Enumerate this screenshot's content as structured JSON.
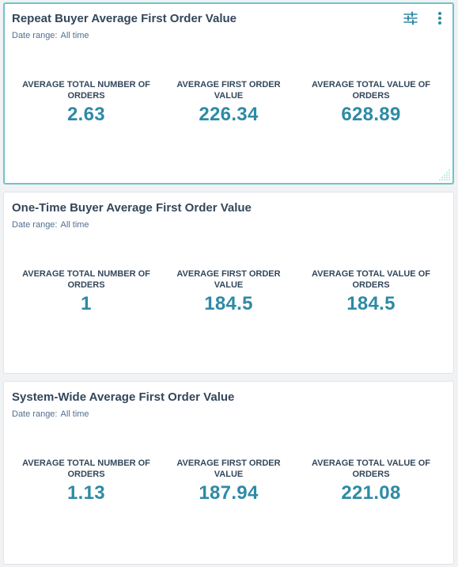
{
  "colors": {
    "accent": "#2e8aa5",
    "title_text": "#33475b",
    "muted_text": "#516f90",
    "selected_border": "#6fc3c9"
  },
  "icons": {
    "filter": "sliders-icon",
    "more": "vertical-ellipsis-icon",
    "resize": "resize-handle-icon"
  },
  "cards": [
    {
      "title": "Repeat Buyer Average First Order Value",
      "date_label": "Date range:",
      "date_value": "All time",
      "metrics": [
        {
          "label": "AVERAGE TOTAL NUMBER OF ORDERS",
          "value": "2.63"
        },
        {
          "label": "AVERAGE FIRST ORDER VALUE",
          "value": "226.34"
        },
        {
          "label": "AVERAGE TOTAL VALUE OF ORDERS",
          "value": "628.89"
        }
      ]
    },
    {
      "title": "One-Time Buyer Average First Order Value",
      "date_label": "Date range:",
      "date_value": "All time",
      "metrics": [
        {
          "label": "AVERAGE TOTAL NUMBER OF ORDERS",
          "value": "1"
        },
        {
          "label": "AVERAGE FIRST ORDER VALUE",
          "value": "184.5"
        },
        {
          "label": "AVERAGE TOTAL VALUE OF ORDERS",
          "value": "184.5"
        }
      ]
    },
    {
      "title": "System-Wide Average First Order Value",
      "date_label": "Date range:",
      "date_value": "All time",
      "metrics": [
        {
          "label": "AVERAGE TOTAL NUMBER OF ORDERS",
          "value": "1.13"
        },
        {
          "label": "AVERAGE FIRST ORDER VALUE",
          "value": "187.94"
        },
        {
          "label": "AVERAGE TOTAL VALUE OF ORDERS",
          "value": "221.08"
        }
      ]
    }
  ]
}
